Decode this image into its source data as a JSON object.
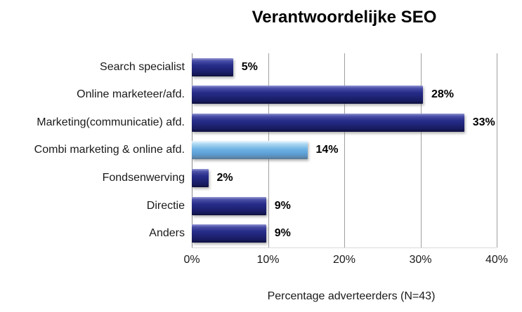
{
  "chart_data": {
    "type": "bar",
    "orientation": "horizontal",
    "title": "Verantwoordelijke SEO",
    "categories": [
      "Search specialist",
      "Online marketeer/afd.",
      "Marketing(communicatie) afd.",
      "Combi marketing & online afd.",
      "Fondsenwerving",
      "Directie",
      "Anders"
    ],
    "values": [
      5,
      28,
      33,
      14,
      2,
      9,
      9
    ],
    "value_labels": [
      "5%",
      "28%",
      "33%",
      "14%",
      "2%",
      "9%",
      "9%"
    ],
    "highlight_index": 3,
    "xlabel": "Percentage adverteerders (N=43)",
    "ylabel": "",
    "xlim": [
      0,
      40
    ],
    "x_ticks": [
      "0%",
      "10%",
      "20%",
      "30%",
      "40%"
    ],
    "grid": true,
    "legend": false,
    "colors": {
      "bar_primary": "#1F2478",
      "bar_highlight": "#6FB3E2",
      "gridline": "#A0A0A0",
      "text": "#1A1A1A",
      "background": "#FFFFFF"
    }
  }
}
